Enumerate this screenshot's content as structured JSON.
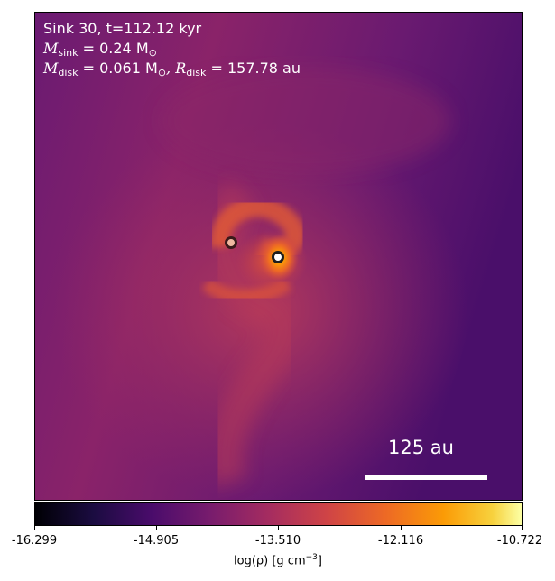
{
  "overlay": {
    "line1": "Sink 30, t=112.12 kyr",
    "m_sink_symbol": "M",
    "m_sink_sub": "sink",
    "m_sink_value": " = 0.24 M",
    "m_sink_unit_sub": "⊙",
    "m_disk_symbol": "M",
    "m_disk_sub": "disk",
    "m_disk_value": " = 0.061 M",
    "m_disk_unit_sub": "⊙",
    "r_disk_symbol": ", R",
    "r_disk_sub": "disk",
    "r_disk_value": " = 157.78 au"
  },
  "scale_bar": {
    "label": "125 au",
    "length_au": 125
  },
  "colorbar": {
    "ticks": [
      "-16.299",
      "-14.905",
      "-13.510",
      "-12.116",
      "-10.722"
    ],
    "label_prefix": "log(ρ) [g cm",
    "label_exp": "−3",
    "label_suffix": "]",
    "colormap": "inferno"
  },
  "sinks": [
    {
      "name": "sink-primary",
      "fill": "#ffffff"
    },
    {
      "name": "sink-secondary",
      "fill": "#f0b8a0"
    }
  ]
}
